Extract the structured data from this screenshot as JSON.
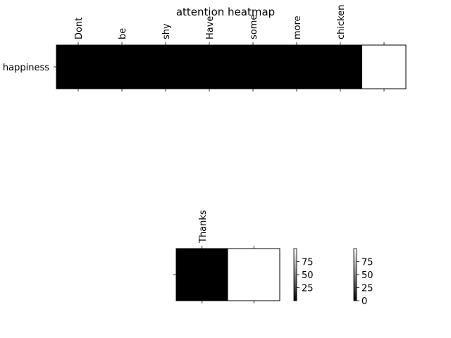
{
  "chart_data": [
    {
      "type": "heatmap",
      "title": "attention heatmap",
      "x_tick_labels": [
        "Dont",
        "be",
        "shy",
        "Have",
        "some",
        "more",
        "chicken",
        ""
      ],
      "y_tick_labels": [
        "happiness"
      ],
      "values": [
        [
          0,
          0,
          0,
          0,
          0,
          0,
          0,
          100
        ]
      ],
      "colormap": "gray",
      "x_ticks_position": "top"
    },
    {
      "type": "heatmap",
      "title": "",
      "x_tick_labels": [
        "Thanks",
        ""
      ],
      "y_tick_labels": [
        ""
      ],
      "values": [
        [
          0,
          100
        ]
      ],
      "colormap": "gray",
      "x_ticks_position": "top"
    }
  ],
  "colorbars": [
    {
      "ticks": [
        "25",
        "50",
        "75"
      ],
      "range": [
        0,
        100
      ]
    },
    {
      "ticks": [
        "0",
        "25",
        "50",
        "75"
      ],
      "range": [
        0,
        100
      ]
    }
  ]
}
